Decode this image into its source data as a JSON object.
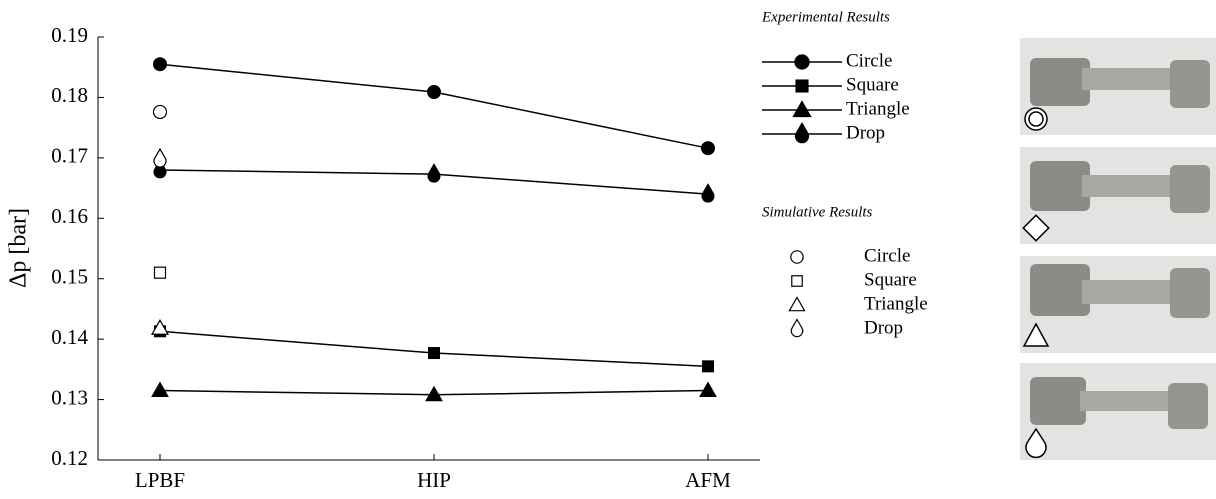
{
  "chart_data": {
    "type": "line",
    "y_label": "Δp [bar]",
    "categories": [
      "LPBF",
      "HIP",
      "AFM"
    ],
    "ylim": [
      0.12,
      0.19
    ],
    "yticks": [
      0.12,
      0.13,
      0.14,
      0.15,
      0.16,
      0.17,
      0.18,
      0.19
    ],
    "color": "#000000",
    "groups": [
      {
        "title": "Experimental Results",
        "filled": true,
        "lines": true,
        "series": [
          {
            "name": "Circle",
            "marker": "circle",
            "values": [
              0.1855,
              0.1809,
              0.1716
            ]
          },
          {
            "name": "Square",
            "marker": "square",
            "values": [
              0.1413,
              0.1377,
              0.1355
            ]
          },
          {
            "name": "Triangle",
            "marker": "triangle",
            "values": [
              0.1315,
              0.1308,
              0.1315
            ]
          },
          {
            "name": "Drop",
            "marker": "drop",
            "values": [
              0.168,
              0.1673,
              0.164
            ]
          }
        ]
      },
      {
        "title": "Simulative Results",
        "filled": false,
        "lines": false,
        "series": [
          {
            "name": "Circle",
            "marker": "circle",
            "values": [
              0.1776,
              null,
              null
            ]
          },
          {
            "name": "Square",
            "marker": "square",
            "values": [
              0.151,
              null,
              null
            ]
          },
          {
            "name": "Triangle",
            "marker": "triangle",
            "values": [
              0.1418,
              null,
              null
            ]
          },
          {
            "name": "Drop",
            "marker": "drop",
            "values": [
              0.1698,
              null,
              null
            ]
          }
        ]
      }
    ]
  }
}
